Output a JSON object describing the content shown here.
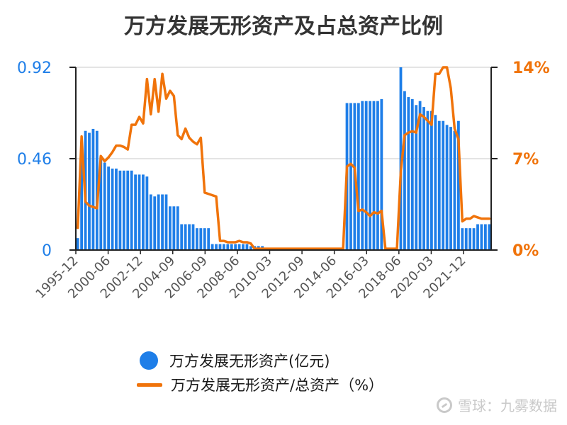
{
  "chart_data": {
    "type": "bar+line",
    "title": "万方发展无形资产及占总资产比例",
    "left_axis": {
      "ticks": [
        "0",
        "0.46",
        "0.92"
      ],
      "ylim": [
        0,
        0.92
      ],
      "color": "#1e7ee8"
    },
    "right_axis": {
      "ticks": [
        "0%",
        "7%",
        "14%"
      ],
      "ylim": [
        0,
        14
      ],
      "color": "#f0730a"
    },
    "x_tick_labels": [
      "1995-12",
      "2000-06",
      "2002-12",
      "2004-09",
      "2006-09",
      "2008-06",
      "2010-03",
      "2012-09",
      "2014-06",
      "2016-03",
      "2018-06",
      "2020-03",
      "2021-12"
    ],
    "grid": "horizontal",
    "legend_position": "bottom",
    "series": [
      {
        "name": "万方发展无形资产(亿元)",
        "type": "bar",
        "axis": "left",
        "color": "#1e7ee8",
        "values": [
          0.06,
          0.46,
          0.6,
          0.59,
          0.61,
          0.6,
          0.47,
          0.44,
          0.42,
          0.41,
          0.41,
          0.4,
          0.4,
          0.4,
          0.4,
          0.38,
          0.38,
          0.38,
          0.37,
          0.28,
          0.27,
          0.28,
          0.28,
          0.28,
          0.22,
          0.22,
          0.22,
          0.13,
          0.13,
          0.13,
          0.13,
          0.11,
          0.11,
          0.11,
          0.11,
          0.03,
          0.03,
          0.03,
          0.03,
          0.03,
          0.03,
          0.03,
          0.03,
          0.03,
          0.03,
          0.02,
          0.02,
          0.02,
          0.02,
          0.01,
          0.0,
          0.0,
          0.0,
          0.0,
          0.0,
          0.0,
          0.0,
          0.0,
          0.0,
          0.0,
          0.0,
          0.0,
          0.0,
          0.0,
          0.0,
          0.0,
          0.0,
          0.0,
          0.0,
          0.0,
          0.74,
          0.74,
          0.74,
          0.74,
          0.75,
          0.75,
          0.75,
          0.75,
          0.75,
          0.76,
          0.0,
          0.0,
          0.0,
          0.0,
          0.92,
          0.8,
          0.77,
          0.76,
          0.73,
          0.75,
          0.72,
          0.7,
          0.7,
          0.68,
          0.65,
          0.65,
          0.63,
          0.62,
          0.6,
          0.65,
          0.11,
          0.11,
          0.11,
          0.11,
          0.13,
          0.13,
          0.13,
          0.13
        ]
      },
      {
        "name": "万方发展无形资产/总资产（%）",
        "type": "line",
        "axis": "right",
        "color": "#f0730a",
        "values": [
          1.7,
          8.7,
          3.7,
          3.4,
          3.3,
          3.2,
          7.2,
          6.8,
          7.1,
          7.5,
          8.0,
          8.0,
          7.9,
          7.7,
          9.6,
          9.6,
          10.2,
          9.7,
          13.1,
          10.4,
          13.1,
          10.6,
          13.5,
          11.6,
          12.2,
          11.8,
          8.8,
          8.5,
          9.3,
          8.6,
          8.3,
          8.1,
          8.6,
          4.4,
          4.3,
          4.2,
          4.1,
          0.7,
          0.7,
          0.6,
          0.6,
          0.6,
          0.7,
          0.6,
          0.6,
          0.5,
          0.1,
          0.1,
          0.1,
          0.1,
          0.1,
          0.1,
          0.1,
          0.1,
          0.1,
          0.1,
          0.1,
          0.1,
          0.1,
          0.1,
          0.1,
          0.1,
          0.1,
          0.1,
          0.1,
          0.1,
          0.1,
          0.1,
          0.1,
          0.1,
          6.4,
          6.6,
          6.3,
          3.0,
          3.1,
          2.9,
          2.6,
          2.9,
          2.8,
          3.0,
          0.1,
          0.1,
          0.1,
          0.1,
          6.0,
          8.8,
          9.0,
          9.1,
          9.0,
          10.4,
          10.2,
          9.9,
          9.6,
          13.5,
          13.5,
          14.0,
          14.0,
          12.4,
          9.3,
          8.5,
          2.2,
          2.4,
          2.4,
          2.6,
          2.5,
          2.4,
          2.4,
          2.4
        ]
      }
    ]
  },
  "watermark": {
    "text": "雪球：九雾数据",
    "icon": "xueqiu-logo-icon"
  }
}
